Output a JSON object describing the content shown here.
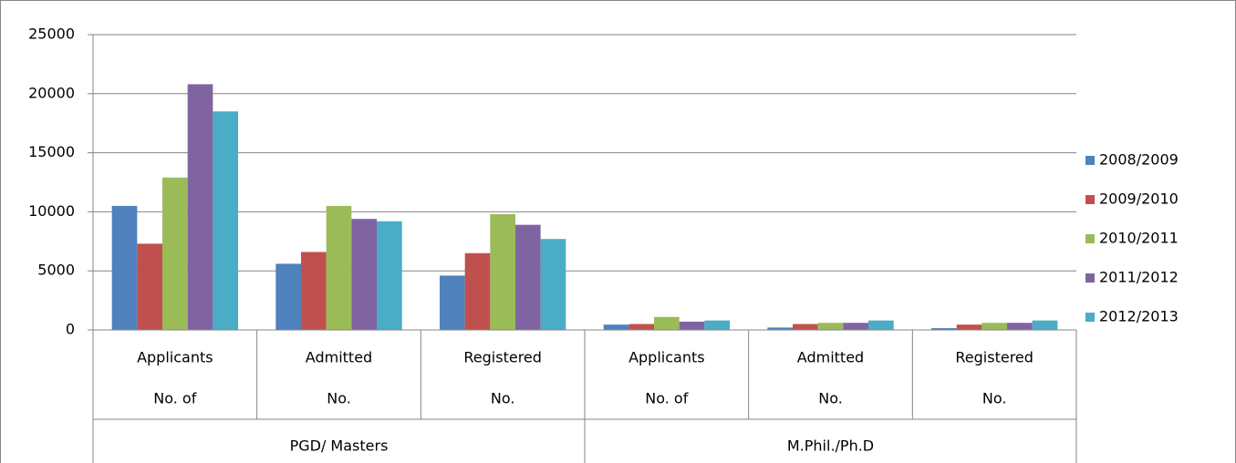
{
  "chart_data": {
    "type": "bar",
    "categories": [
      "Applicants",
      "Admitted",
      "Registered",
      "Applicants",
      "Admitted",
      "Registered"
    ],
    "category_sublabels": [
      "No. of",
      "No.",
      "No.",
      "No. of",
      "No.",
      "No."
    ],
    "category_groups": [
      {
        "name": "PGD/ Masters",
        "span": 3
      },
      {
        "name": "M.Phil./Ph.D",
        "span": 3
      }
    ],
    "series": [
      {
        "name": "2008/2009",
        "color": "#4f81bd",
        "values": [
          10500,
          5600,
          4600,
          450,
          200,
          150
        ]
      },
      {
        "name": "2009/2010",
        "color": "#c0504d",
        "values": [
          7300,
          6600,
          6500,
          500,
          500,
          450
        ]
      },
      {
        "name": "2010/2011",
        "color": "#9bbb59",
        "values": [
          12900,
          10500,
          9800,
          1100,
          600,
          600
        ]
      },
      {
        "name": "2011/2012",
        "color": "#8064a2",
        "values": [
          20800,
          9400,
          8900,
          700,
          600,
          600
        ]
      },
      {
        "name": "2012/2013",
        "color": "#4bacc6",
        "values": [
          18500,
          9200,
          7700,
          800,
          800,
          800
        ]
      }
    ],
    "ylim": [
      0,
      25000
    ],
    "yticks": [
      0,
      5000,
      10000,
      15000,
      20000,
      25000
    ],
    "grid": true,
    "legend": "right"
  }
}
